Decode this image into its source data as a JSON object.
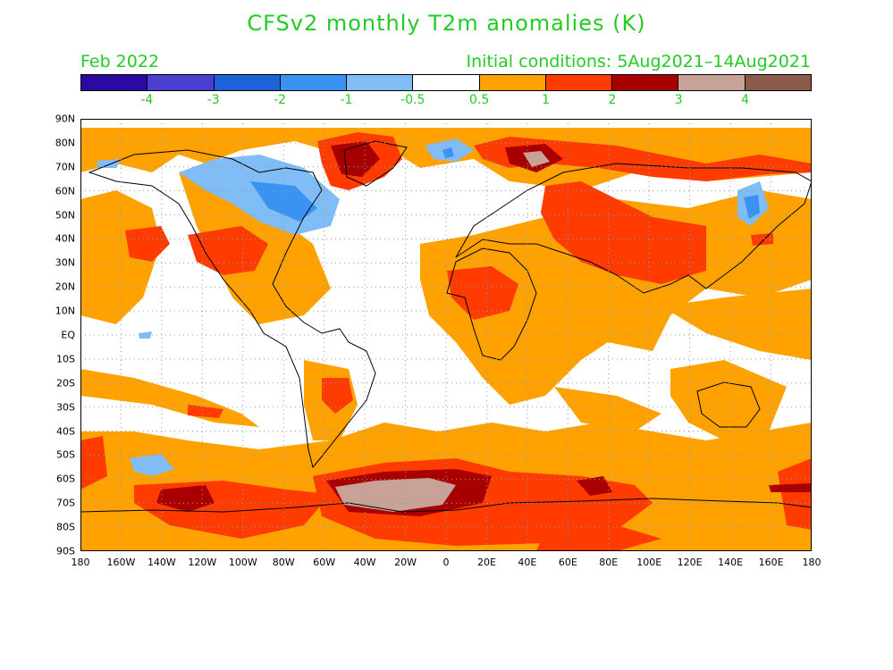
{
  "title": "CFSv2 monthly T2m anomalies (K)",
  "period": "Feb 2022",
  "initial_conditions": "Initial conditions: 5Aug2021–14Aug2021",
  "colorbar": {
    "colors": [
      "#2a0aa0",
      "#4a3fd0",
      "#1c62d8",
      "#3a92f2",
      "#80bdf6",
      "#ffffff",
      "#ffa200",
      "#ff3b00",
      "#a80000",
      "#c8a296",
      "#8a5a4a"
    ],
    "ticks": [
      "-4",
      "-3",
      "-2",
      "-1",
      "-0.5",
      "0.5",
      "1",
      "2",
      "3",
      "4"
    ]
  },
  "lat_labels": [
    "90N",
    "80N",
    "70N",
    "60N",
    "50N",
    "40N",
    "30N",
    "20N",
    "10N",
    "EQ",
    "10S",
    "20S",
    "30S",
    "40S",
    "50S",
    "60S",
    "70S",
    "80S",
    "90S"
  ],
  "lon_labels": [
    "180",
    "160W",
    "140W",
    "120W",
    "100W",
    "80W",
    "60W",
    "40W",
    "20W",
    "0",
    "20E",
    "40E",
    "60E",
    "80E",
    "100E",
    "120E",
    "140E",
    "160E",
    "180"
  ],
  "colors": {
    "text": "#22cc22",
    "cold_light": "#80bdf6",
    "cold_mid": "#3a92f2",
    "warm_light": "#ffa200",
    "warm_mid": "#ff3b00",
    "warm_dark": "#a80000",
    "warm_extreme": "#c8a296"
  }
}
